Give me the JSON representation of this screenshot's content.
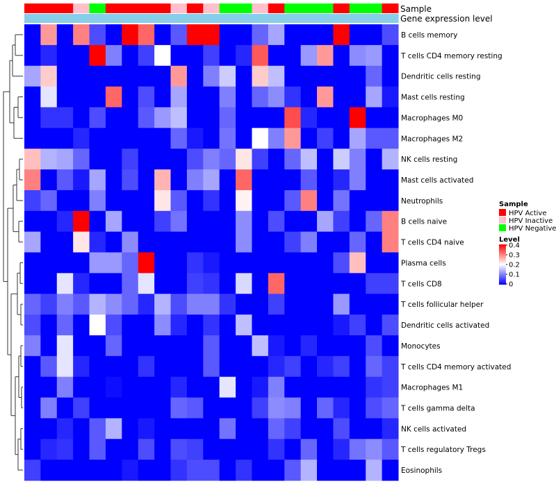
{
  "chart_data": {
    "type": "heatmap",
    "annotation_tracks": [
      "Sample",
      "Gene expression level"
    ],
    "sample_groups": [
      "HPV Active",
      "HPV Active",
      "HPV Active",
      "HPV Inactive",
      "HPV Negative",
      "HPV Active",
      "HPV Active",
      "HPV Active",
      "HPV Active",
      "HPV Inactive",
      "HPV Active",
      "HPV Inactive",
      "HPV Negative",
      "HPV Negative",
      "HPV Inactive",
      "HPV Active",
      "HPV Negative",
      "HPV Negative",
      "HPV Negative",
      "HPV Active",
      "HPV Negative",
      "HPV Negative",
      "HPV Active"
    ],
    "row_labels": [
      "B cells memory",
      "T cells CD4 memory resting",
      "Dendritic cells resting",
      "Mast cells resting",
      "Macrophages M0",
      "Macrophages M2",
      "NK cells resting",
      "Mast cells activated",
      "Neutrophils",
      "B cells naive",
      "T cells CD4 naive",
      "Plasma cells",
      "T cells CD8",
      "T cells follicular helper",
      "Dendritic cells activated",
      "Monocytes",
      "T cells CD4 memory activated",
      "Macrophages M1",
      "T cells gamma delta",
      "NK cells activated",
      "T cells regulatory  Tregs",
      "Eosinophils"
    ],
    "values": [
      [
        0.0,
        0.28,
        0.0,
        0.3,
        0.06,
        0.0,
        0.4,
        0.32,
        0.0,
        0.07,
        0.4,
        0.4,
        0.0,
        0.0,
        0.08,
        0.13,
        0.0,
        0.0,
        0.0,
        0.4,
        0.0,
        0.0,
        0.06
      ],
      [
        0.0,
        0.03,
        0.0,
        0.0,
        0.4,
        0.1,
        0.0,
        0.05,
        0.2,
        0.0,
        0.0,
        0.05,
        0.0,
        0.03,
        0.33,
        0.0,
        0.0,
        0.12,
        0.28,
        0.0,
        0.11,
        0.12,
        0.0
      ],
      [
        0.13,
        0.24,
        0.0,
        0.0,
        0.0,
        0.0,
        0.0,
        0.0,
        0.0,
        0.28,
        0.0,
        0.1,
        0.16,
        0.0,
        0.24,
        0.15,
        0.0,
        0.0,
        0.0,
        0.0,
        0.0,
        0.08,
        0.0
      ],
      [
        0.0,
        0.18,
        0.0,
        0.0,
        0.0,
        0.32,
        0.0,
        0.06,
        0.0,
        0.13,
        0.0,
        0.0,
        0.1,
        0.0,
        0.08,
        0.11,
        0.04,
        0.0,
        0.28,
        0.0,
        0.0,
        0.13,
        0.02
      ],
      [
        0.0,
        0.04,
        0.04,
        0.0,
        0.06,
        0.0,
        0.0,
        0.07,
        0.12,
        0.15,
        0.0,
        0.0,
        0.08,
        0.0,
        0.0,
        0.0,
        0.34,
        0.03,
        0.0,
        0.0,
        0.4,
        0.0,
        0.0
      ],
      [
        0.0,
        0.0,
        0.0,
        0.03,
        0.0,
        0.0,
        0.0,
        0.0,
        0.0,
        0.08,
        0.02,
        0.0,
        0.09,
        0.0,
        0.2,
        0.1,
        0.28,
        0.0,
        0.05,
        0.0,
        0.13,
        0.07,
        0.07
      ],
      [
        0.25,
        0.14,
        0.13,
        0.08,
        0.0,
        0.0,
        0.05,
        0.0,
        0.0,
        0.0,
        0.06,
        0.1,
        0.08,
        0.22,
        0.05,
        0.0,
        0.08,
        0.15,
        0.0,
        0.16,
        0.1,
        0.0,
        0.14
      ],
      [
        0.3,
        0.0,
        0.07,
        0.02,
        0.13,
        0.0,
        0.06,
        0.0,
        0.26,
        0.0,
        0.1,
        0.13,
        0.0,
        0.32,
        0.0,
        0.0,
        0.0,
        0.07,
        0.0,
        0.03,
        0.1,
        0.0,
        0.0
      ],
      [
        0.05,
        0.08,
        0.0,
        0.0,
        0.1,
        0.0,
        0.0,
        0.0,
        0.22,
        0.07,
        0.0,
        0.04,
        0.0,
        0.21,
        0.0,
        0.0,
        0.07,
        0.3,
        0.0,
        0.09,
        0.0,
        0.0,
        0.0
      ],
      [
        0.0,
        0.0,
        0.03,
        0.4,
        0.0,
        0.13,
        0.0,
        0.0,
        0.05,
        0.09,
        0.0,
        0.0,
        0.0,
        0.11,
        0.0,
        0.06,
        0.0,
        0.0,
        0.13,
        0.05,
        0.0,
        0.08,
        0.3
      ],
      [
        0.13,
        0.0,
        0.0,
        0.22,
        0.03,
        0.0,
        0.11,
        0.0,
        0.0,
        0.0,
        0.0,
        0.0,
        0.0,
        0.11,
        0.0,
        0.0,
        0.05,
        0.1,
        0.0,
        0.0,
        0.08,
        0.0,
        0.3
      ],
      [
        0.0,
        0.0,
        0.0,
        0.0,
        0.12,
        0.12,
        0.08,
        0.4,
        0.0,
        0.0,
        0.04,
        0.02,
        0.0,
        0.0,
        0.0,
        0.0,
        0.0,
        0.0,
        0.0,
        0.06,
        0.25,
        0.0,
        0.0
      ],
      [
        0.0,
        0.0,
        0.18,
        0.03,
        0.0,
        0.0,
        0.08,
        0.18,
        0.0,
        0.0,
        0.05,
        0.04,
        0.0,
        0.17,
        0.0,
        0.32,
        0.0,
        0.0,
        0.0,
        0.0,
        0.0,
        0.05,
        0.05
      ],
      [
        0.08,
        0.05,
        0.1,
        0.07,
        0.14,
        0.11,
        0.08,
        0.03,
        0.14,
        0.06,
        0.1,
        0.1,
        0.04,
        0.0,
        0.0,
        0.05,
        0.0,
        0.0,
        0.0,
        0.12,
        0.0,
        0.0,
        0.0
      ],
      [
        0.06,
        0.0,
        0.08,
        0.0,
        0.2,
        0.06,
        0.0,
        0.0,
        0.11,
        0.03,
        0.0,
        0.04,
        0.0,
        0.15,
        0.0,
        0.0,
        0.0,
        0.0,
        0.0,
        0.02,
        0.05,
        0.0,
        0.06
      ],
      [
        0.1,
        0.0,
        0.18,
        0.0,
        0.0,
        0.08,
        0.0,
        0.0,
        0.0,
        0.0,
        0.0,
        0.07,
        0.0,
        0.0,
        0.15,
        0.02,
        0.0,
        0.03,
        0.0,
        0.0,
        0.0,
        0.06,
        0.0
      ],
      [
        0.0,
        0.07,
        0.18,
        0.03,
        0.0,
        0.0,
        0.0,
        0.04,
        0.0,
        0.0,
        0.0,
        0.07,
        0.0,
        0.0,
        0.0,
        0.03,
        0.05,
        0.0,
        0.03,
        0.05,
        0.0,
        0.08,
        0.05
      ],
      [
        0.0,
        0.0,
        0.1,
        0.0,
        0.0,
        0.01,
        0.0,
        0.0,
        0.0,
        0.03,
        0.0,
        0.0,
        0.18,
        0.0,
        0.02,
        0.1,
        0.0,
        0.0,
        0.0,
        0.0,
        0.0,
        0.04,
        0.05
      ],
      [
        0.0,
        0.1,
        0.0,
        0.05,
        0.0,
        0.0,
        0.0,
        0.0,
        0.0,
        0.08,
        0.07,
        0.0,
        0.0,
        0.0,
        0.05,
        0.11,
        0.1,
        0.0,
        0.08,
        0.03,
        0.0,
        0.06,
        0.08
      ],
      [
        0.0,
        0.0,
        0.03,
        0.0,
        0.07,
        0.14,
        0.0,
        0.02,
        0.0,
        0.0,
        0.0,
        0.0,
        0.09,
        0.0,
        0.0,
        0.08,
        0.05,
        0.0,
        0.0,
        0.06,
        0.0,
        0.0,
        0.03
      ],
      [
        0.0,
        0.03,
        0.04,
        0.0,
        0.07,
        0.0,
        0.0,
        0.06,
        0.0,
        0.06,
        0.05,
        0.0,
        0.0,
        0.0,
        0.0,
        0.04,
        0.0,
        0.08,
        0.0,
        0.03,
        0.09,
        0.11,
        0.07
      ],
      [
        0.05,
        0.0,
        0.0,
        0.0,
        0.0,
        0.0,
        0.02,
        0.0,
        0.0,
        0.04,
        0.06,
        0.06,
        0.0,
        0.04,
        0.0,
        0.0,
        0.07,
        0.14,
        0.0,
        0.0,
        0.0,
        0.14,
        0.0
      ]
    ],
    "color_scale": {
      "min": 0,
      "max": 0.4,
      "low_color": "#0000ff",
      "mid_color": "#ffffff",
      "high_color": "#ff0000",
      "mid_value": 0.2
    },
    "legend": {
      "sample_title": "Sample",
      "sample_entries": [
        {
          "label": "HPV Active",
          "color": "#ff0000"
        },
        {
          "label": "HPV Inactive",
          "color": "#ffc0cb"
        },
        {
          "label": "HPV Negative",
          "color": "#00ff00"
        }
      ],
      "level_title": "Level",
      "level_ticks": [
        "0.4",
        "0.3",
        "0.2",
        "0.1",
        "0"
      ],
      "position": "right"
    },
    "expression_track_color": "#87ceeb",
    "dendrogram": "rows-left"
  }
}
